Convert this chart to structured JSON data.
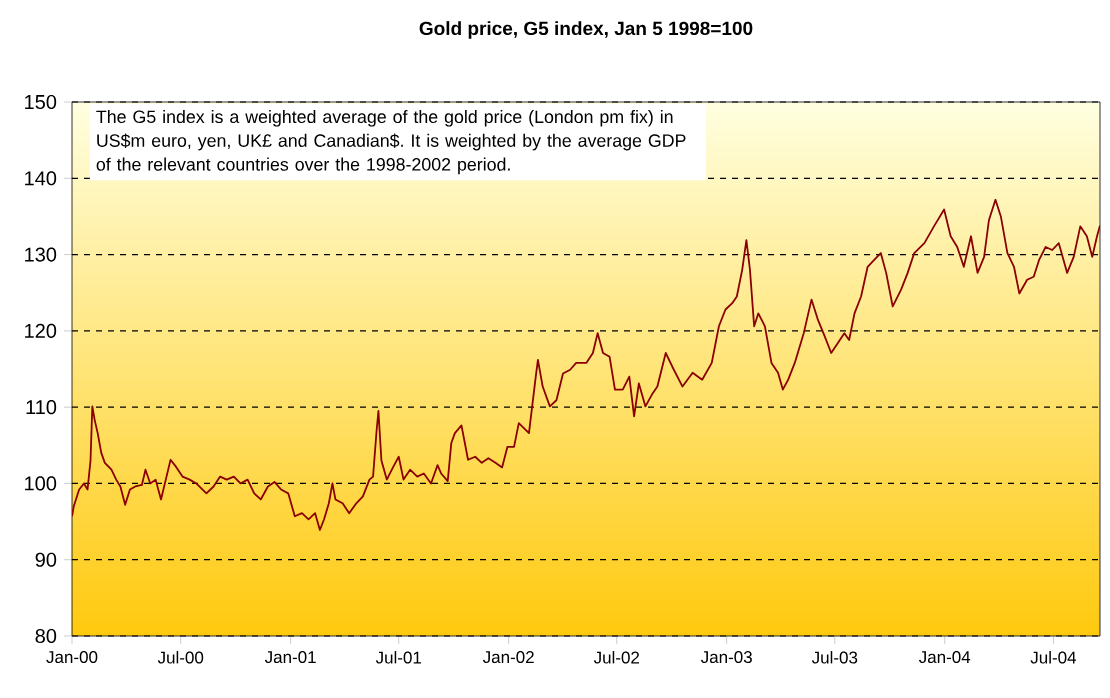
{
  "chart_data": {
    "type": "line",
    "title": "Gold price, G5 index, Jan 5 1998=100",
    "annotations": [
      "The G5 index is a weighted average of the gold price (London pm fix) in US$m euro, yen, UK£ and Canadian$. It is weighted by the average GDP of the relevant countries over the 1998-2002 period."
    ],
    "x": [
      "2000-01-01",
      "2000-01-04",
      "2000-01-13",
      "2000-01-21",
      "2000-01-27",
      "2000-02-01",
      "2000-02-04",
      "2000-02-08",
      "2000-02-13",
      "2000-02-19",
      "2000-02-25",
      "2000-03-07",
      "2000-03-15",
      "2000-03-22",
      "2000-03-30",
      "2000-04-07",
      "2000-04-16",
      "2000-04-27",
      "2000-05-03",
      "2000-05-11",
      "2000-05-20",
      "2000-05-29",
      "2000-06-06",
      "2000-06-14",
      "2000-06-23",
      "2000-07-04",
      "2000-07-16",
      "2000-07-27",
      "2000-08-13",
      "2000-08-25",
      "2000-09-05",
      "2000-09-16",
      "2000-09-28",
      "2000-10-09",
      "2000-10-21",
      "2000-11-01",
      "2000-11-12",
      "2000-11-24",
      "2000-12-05",
      "2000-12-16",
      "2000-12-28",
      "2001-01-08",
      "2001-01-20",
      "2001-01-31",
      "2001-02-11",
      "2001-02-19",
      "2001-02-26",
      "2001-03-06",
      "2001-03-12",
      "2001-03-17",
      "2001-03-29",
      "2001-04-09",
      "2001-04-21",
      "2001-05-02",
      "2001-05-13",
      "2001-05-19",
      "2001-05-25",
      "2001-05-28",
      "2001-06-02",
      "2001-06-11",
      "2001-06-22",
      "2001-07-01",
      "2001-07-09",
      "2001-07-20",
      "2001-08-01",
      "2001-08-12",
      "2001-08-24",
      "2001-09-04",
      "2001-09-10",
      "2001-09-21",
      "2001-09-27",
      "2001-10-03",
      "2001-10-14",
      "2001-10-25",
      "2001-11-06",
      "2001-11-17",
      "2001-11-28",
      "2001-12-10",
      "2001-12-21",
      "2001-12-30",
      "2002-01-10",
      "2002-01-18",
      "2002-02-04",
      "2002-02-16",
      "2002-02-19",
      "2002-02-27",
      "2002-03-11",
      "2002-03-22",
      "2002-04-02",
      "2002-04-14",
      "2002-04-24",
      "2002-05-11",
      "2002-05-22",
      "2002-05-30",
      "2002-06-08",
      "2002-06-19",
      "2002-06-28",
      "2002-07-11",
      "2002-07-22",
      "2002-07-30",
      "2002-08-07",
      "2002-08-18",
      "2002-08-30",
      "2002-09-07",
      "2002-09-21",
      "2002-10-02",
      "2002-10-19",
      "2002-11-05",
      "2002-11-21",
      "2002-12-07",
      "2002-12-19",
      "2002-12-30",
      "2003-01-10",
      "2003-01-18",
      "2003-01-27",
      "2003-02-03",
      "2003-02-09",
      "2003-02-16",
      "2003-02-23",
      "2003-03-06",
      "2003-03-17",
      "2003-03-28",
      "2003-04-05",
      "2003-04-14",
      "2003-04-25",
      "2003-05-10",
      "2003-05-23",
      "2003-06-03",
      "2003-06-14",
      "2003-06-25",
      "2003-07-06",
      "2003-07-17",
      "2003-07-25",
      "2003-08-03",
      "2003-08-14",
      "2003-08-25",
      "2003-09-05",
      "2003-09-16",
      "2003-09-25",
      "2003-10-06",
      "2003-10-20",
      "2003-10-31",
      "2003-11-11",
      "2003-11-28",
      "2003-12-14",
      "2003-12-31",
      "2004-01-11",
      "2004-01-22",
      "2004-02-02",
      "2004-02-14",
      "2004-02-25",
      "2004-03-07",
      "2004-03-15",
      "2004-03-26",
      "2004-04-04",
      "2004-04-15",
      "2004-04-26",
      "2004-05-05",
      "2004-05-18",
      "2004-05-29",
      "2004-06-07",
      "2004-06-18",
      "2004-06-29",
      "2004-07-10",
      "2004-07-24",
      "2004-08-04",
      "2004-08-15",
      "2004-08-26",
      "2004-09-04",
      "2004-09-12",
      "2004-09-17"
    ],
    "series": [
      {
        "color": "#8b0000",
        "values": [
          95.7,
          97,
          99.2,
          100,
          99.2,
          103,
          110.1,
          108.3,
          106.6,
          104,
          102.7,
          101.8,
          100.5,
          99.6,
          97.2,
          99.2,
          99.6,
          99.8,
          101.8,
          100,
          100.5,
          97.9,
          100.5,
          103.1,
          102.2,
          100.9,
          100.5,
          100,
          98.7,
          99.6,
          100.9,
          100.5,
          100.9,
          100,
          100.5,
          98.7,
          97.9,
          99.6,
          100.2,
          99.2,
          98.7,
          95.7,
          96.1,
          95.3,
          96.1,
          93.9,
          95.3,
          97.4,
          100,
          97.9,
          97.4,
          96.1,
          97.4,
          98.3,
          100.5,
          100.9,
          107,
          109.5,
          103,
          100.5,
          102.2,
          103.5,
          100.5,
          101.8,
          100.9,
          101.3,
          100,
          102.4,
          101.3,
          100.3,
          105.3,
          106.6,
          107.6,
          103.1,
          103.5,
          102.7,
          103.3,
          102.7,
          102.1,
          104.8,
          104.8,
          107.9,
          106.6,
          114.4,
          116.2,
          112.7,
          110.1,
          110.9,
          114.4,
          114.9,
          115.8,
          115.8,
          117.1,
          119.7,
          117.1,
          116.6,
          112.3,
          112.3,
          114,
          108.8,
          113.1,
          110.1,
          111.8,
          112.7,
          117.1,
          115.3,
          112.7,
          114.5,
          113.6,
          115.8,
          120.6,
          122.8,
          123.6,
          124.5,
          128,
          131.9,
          128,
          120.6,
          122.3,
          120.6,
          115.8,
          114.5,
          112.3,
          113.6,
          115.8,
          119.7,
          124.1,
          121.4,
          119.3,
          117.1,
          118.4,
          119.7,
          118.8,
          122.3,
          124.5,
          128.4,
          129.3,
          130.2,
          127.6,
          123.2,
          125.4,
          127.6,
          130.2,
          131.5,
          133.7,
          135.9,
          132.4,
          131,
          128.4,
          132.4,
          127.6,
          129.7,
          134.5,
          137.2,
          135,
          130.2,
          128.4,
          124.9,
          126.7,
          127.1,
          129.3,
          131,
          130.6,
          131.5,
          127.6,
          129.7,
          133.7,
          132.4,
          129.7,
          132.4,
          133.8
        ]
      }
    ],
    "xlim": [
      "2000-01-01",
      "2004-09-17"
    ],
    "xticks": [
      {
        "value": "2000-01-01",
        "label": "Jan-00"
      },
      {
        "value": "2000-07-01",
        "label": "Jul-00"
      },
      {
        "value": "2001-01-01",
        "label": "Jan-01"
      },
      {
        "value": "2001-07-01",
        "label": "Jul-01"
      },
      {
        "value": "2002-01-01",
        "label": "Jan-02"
      },
      {
        "value": "2002-07-01",
        "label": "Jul-02"
      },
      {
        "value": "2003-01-01",
        "label": "Jan-03"
      },
      {
        "value": "2003-07-01",
        "label": "Jul-03"
      },
      {
        "value": "2004-01-01",
        "label": "Jan-04"
      },
      {
        "value": "2004-07-01",
        "label": "Jul-04"
      }
    ],
    "ylim": [
      80,
      150
    ],
    "yticks": [
      80,
      90,
      100,
      110,
      120,
      130,
      140,
      150
    ],
    "grid": "y"
  }
}
